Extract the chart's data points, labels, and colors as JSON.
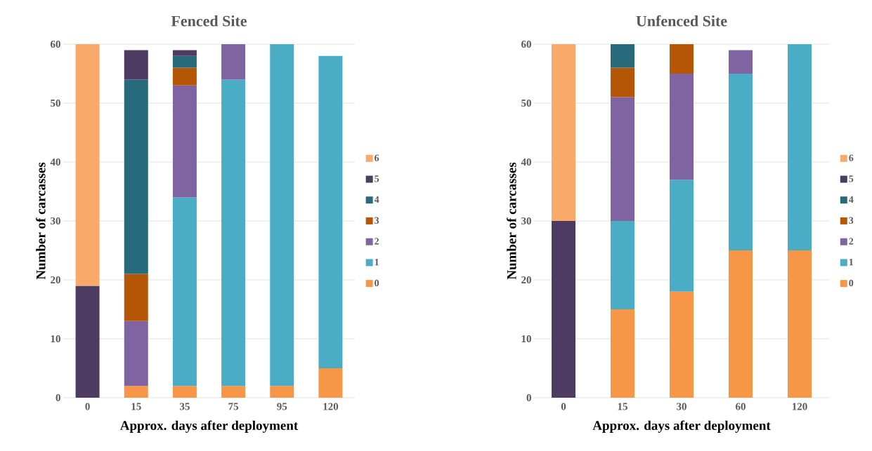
{
  "chart_data": [
    {
      "type": "bar",
      "title": "Fenced Site",
      "xlabel": "Approx. days after deployment",
      "ylabel": "Number of carcasses",
      "categories": [
        "0",
        "15",
        "35",
        "75",
        "95",
        "120"
      ],
      "stacked": true,
      "ylim": [
        0,
        60
      ],
      "yticks": [
        0,
        10,
        20,
        30,
        40,
        50,
        60
      ],
      "grid": "y",
      "legend": "right",
      "series": [
        {
          "name": "0",
          "color": "#f79646",
          "values": [
            null,
            2,
            2,
            2,
            2,
            5
          ]
        },
        {
          "name": "1",
          "color": "#4bacc6",
          "values": [
            null,
            null,
            32,
            52,
            58,
            53
          ]
        },
        {
          "name": "2",
          "color": "#8064a2",
          "values": [
            null,
            11,
            19,
            6,
            null,
            null
          ]
        },
        {
          "name": "3",
          "color": "#b65708",
          "values": [
            null,
            8,
            3,
            null,
            null,
            null
          ]
        },
        {
          "name": "4",
          "color": "#276a7c",
          "values": [
            null,
            33,
            2,
            null,
            null,
            null
          ]
        },
        {
          "name": "5",
          "color": "#4d3b62",
          "values": [
            19,
            5,
            1,
            null,
            null,
            null
          ]
        },
        {
          "name": "6",
          "color": "#f9aa6b",
          "values": [
            41,
            null,
            null,
            null,
            null,
            null
          ]
        }
      ]
    },
    {
      "type": "bar",
      "title": "Unfenced Site",
      "xlabel": "Approx. days after deployment",
      "ylabel": "Number of carcasses",
      "categories": [
        "0",
        "15",
        "30",
        "60",
        "120"
      ],
      "stacked": true,
      "ylim": [
        0,
        60
      ],
      "yticks": [
        0,
        10,
        20,
        30,
        40,
        50,
        60
      ],
      "grid": "y",
      "legend": "right",
      "series": [
        {
          "name": "0",
          "color": "#f79646",
          "values": [
            null,
            15,
            18,
            25,
            25
          ]
        },
        {
          "name": "1",
          "color": "#4bacc6",
          "values": [
            null,
            15,
            19,
            30,
            35
          ]
        },
        {
          "name": "2",
          "color": "#8064a2",
          "values": [
            null,
            21,
            18,
            4,
            null
          ]
        },
        {
          "name": "3",
          "color": "#b65708",
          "values": [
            null,
            5,
            5,
            null,
            null
          ]
        },
        {
          "name": "4",
          "color": "#276a7c",
          "values": [
            null,
            4,
            null,
            null,
            null
          ]
        },
        {
          "name": "5",
          "color": "#4d3b62",
          "values": [
            30,
            null,
            null,
            null,
            null
          ]
        },
        {
          "name": "6",
          "color": "#f9aa6b",
          "values": [
            30,
            null,
            null,
            null,
            null
          ]
        }
      ]
    }
  ]
}
